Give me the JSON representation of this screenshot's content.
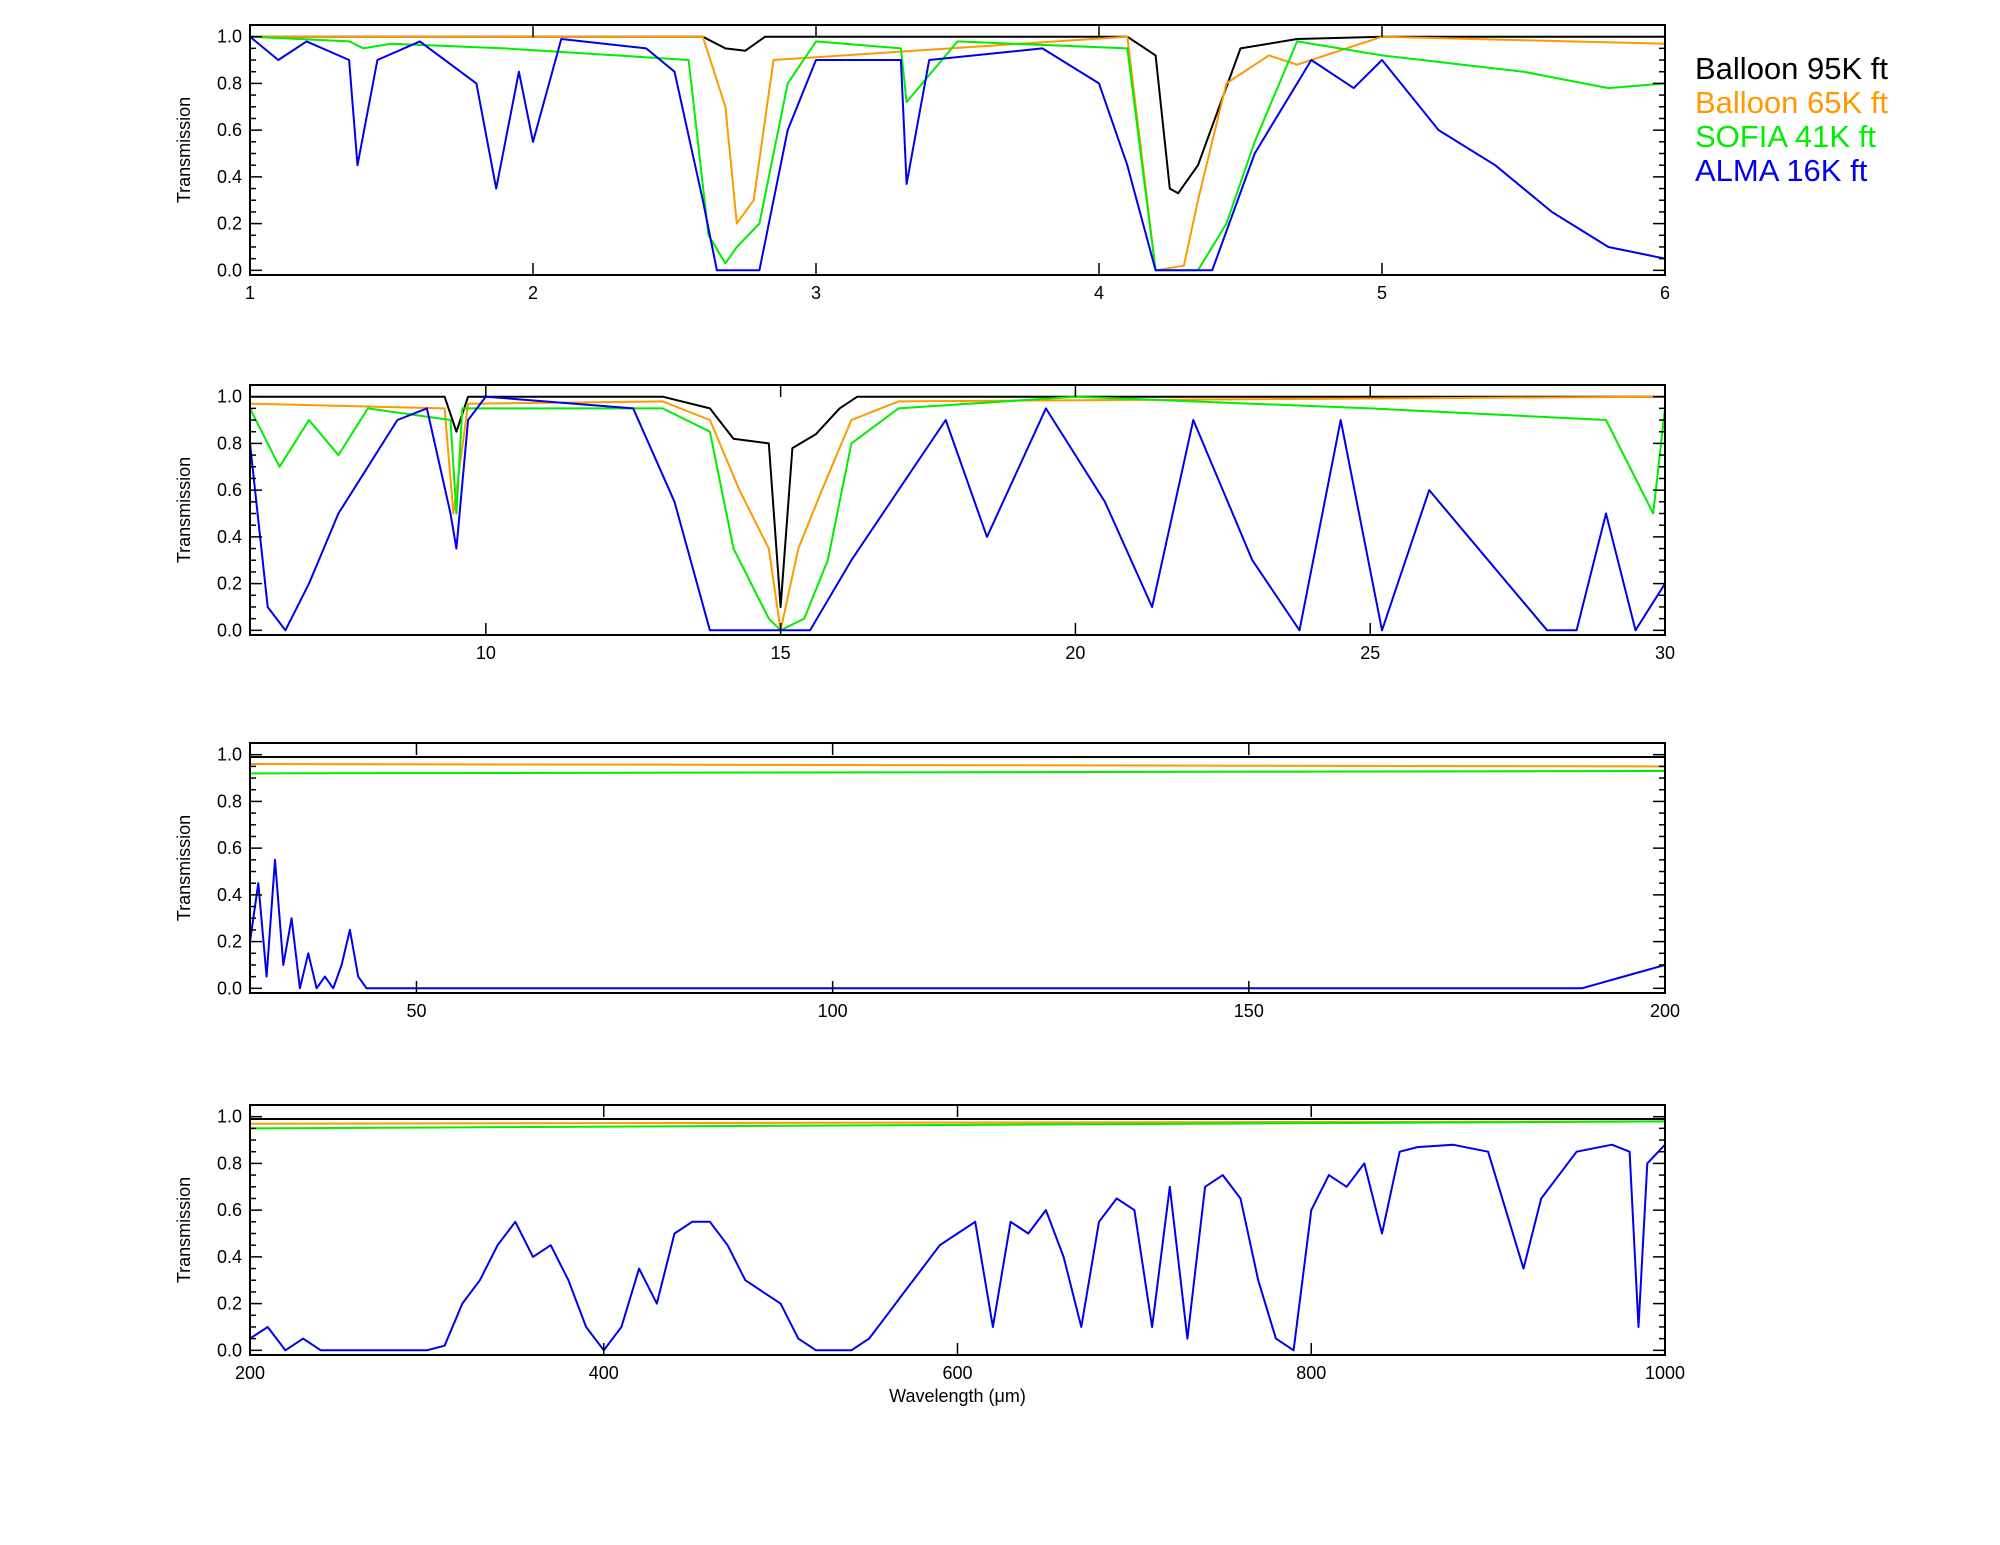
{
  "chart_data": [
    {
      "type": "line",
      "xlabel": "",
      "ylabel": "Transmission",
      "xlim": [
        1,
        6
      ],
      "ylim": [
        -0.02,
        1.05
      ],
      "xticks": [
        1,
        2,
        3,
        4,
        5,
        6
      ],
      "xtick_labels": [
        "1",
        "2",
        "3",
        "4",
        "5",
        "6"
      ],
      "yticks": [
        0.0,
        0.2,
        0.4,
        0.6,
        0.8,
        1.0
      ],
      "ytick_labels": [
        "0.0",
        "0.2",
        "0.4",
        "0.6",
        "0.8",
        "1.0"
      ],
      "series": [
        {
          "name": "Balloon 95K ft",
          "color": "#000000",
          "x": [
            1.0,
            2.6,
            2.68,
            2.75,
            2.82,
            4.1,
            4.2,
            4.25,
            4.28,
            4.35,
            4.5,
            4.7,
            5.0,
            6.0
          ],
          "y": [
            1.0,
            1.0,
            0.95,
            0.94,
            1.0,
            1.0,
            0.92,
            0.35,
            0.33,
            0.45,
            0.95,
            0.99,
            1.0,
            1.0
          ]
        },
        {
          "name": "Balloon 65K ft",
          "color": "#ff9900",
          "x": [
            1.0,
            2.6,
            2.68,
            2.72,
            2.78,
            2.85,
            4.1,
            4.2,
            4.3,
            4.35,
            4.45,
            4.6,
            4.7,
            5.0,
            6.0
          ],
          "y": [
            1.0,
            1.0,
            0.7,
            0.2,
            0.3,
            0.9,
            1.0,
            0.0,
            0.02,
            0.3,
            0.8,
            0.92,
            0.88,
            1.0,
            0.97
          ]
        },
        {
          "name": "SOFIA 41K ft",
          "color": "#00ee00",
          "x": [
            1.0,
            1.35,
            1.4,
            1.5,
            1.9,
            2.55,
            2.62,
            2.68,
            2.72,
            2.8,
            2.9,
            3.0,
            3.3,
            3.32,
            3.5,
            4.1,
            4.2,
            4.35,
            4.45,
            4.55,
            4.7,
            5.0,
            5.5,
            5.8,
            6.0
          ],
          "y": [
            1.0,
            0.98,
            0.95,
            0.97,
            0.95,
            0.9,
            0.15,
            0.03,
            0.1,
            0.2,
            0.8,
            0.98,
            0.95,
            0.72,
            0.98,
            0.95,
            0.0,
            0.0,
            0.2,
            0.55,
            0.98,
            0.92,
            0.85,
            0.78,
            0.8
          ]
        },
        {
          "name": "ALMA 16K ft",
          "color": "#0000ee",
          "x": [
            1.0,
            1.1,
            1.2,
            1.35,
            1.38,
            1.45,
            1.6,
            1.8,
            1.87,
            1.95,
            2.0,
            2.1,
            2.4,
            2.5,
            2.6,
            2.65,
            2.8,
            2.9,
            3.0,
            3.3,
            3.32,
            3.4,
            3.8,
            4.0,
            4.1,
            4.2,
            4.4,
            4.55,
            4.75,
            4.9,
            5.0,
            5.2,
            5.4,
            5.6,
            5.8,
            6.0
          ],
          "y": [
            1.0,
            0.9,
            0.98,
            0.9,
            0.45,
            0.9,
            0.98,
            0.8,
            0.35,
            0.85,
            0.55,
            0.99,
            0.95,
            0.85,
            0.3,
            0.0,
            0.0,
            0.6,
            0.9,
            0.9,
            0.37,
            0.9,
            0.95,
            0.8,
            0.45,
            0.0,
            0.0,
            0.5,
            0.9,
            0.78,
            0.9,
            0.6,
            0.45,
            0.25,
            0.1,
            0.05
          ]
        }
      ]
    },
    {
      "type": "line",
      "xlabel": "",
      "ylabel": "Transmission",
      "xlim": [
        6,
        30
      ],
      "ylim": [
        -0.02,
        1.05
      ],
      "xticks": [
        10,
        15,
        20,
        25,
        30
      ],
      "xtick_labels": [
        "10",
        "15",
        "20",
        "25",
        "30"
      ],
      "yticks": [
        0.0,
        0.2,
        0.4,
        0.6,
        0.8,
        1.0
      ],
      "ytick_labels": [
        "0.0",
        "0.2",
        "0.4",
        "0.6",
        "0.8",
        "1.0"
      ],
      "series": [
        {
          "name": "Balloon 95K ft",
          "color": "#000000",
          "x": [
            6.0,
            9.3,
            9.5,
            9.7,
            13.0,
            13.8,
            14.2,
            14.8,
            15.0,
            15.2,
            15.6,
            16.0,
            16.3,
            30.0
          ],
          "y": [
            1.0,
            1.0,
            0.85,
            1.0,
            1.0,
            0.95,
            0.82,
            0.8,
            0.1,
            0.78,
            0.84,
            0.95,
            1.0,
            1.0
          ]
        },
        {
          "name": "Balloon 65K ft",
          "color": "#ff9900",
          "x": [
            6.0,
            9.3,
            9.45,
            9.7,
            13.0,
            13.8,
            14.3,
            14.8,
            15.0,
            15.3,
            15.7,
            16.2,
            17.0,
            30.0
          ],
          "y": [
            0.97,
            0.95,
            0.5,
            0.97,
            0.98,
            0.9,
            0.6,
            0.35,
            0.0,
            0.35,
            0.6,
            0.9,
            0.98,
            1.0
          ]
        },
        {
          "name": "SOFIA 41K ft",
          "color": "#00ee00",
          "x": [
            6.0,
            6.5,
            7.0,
            7.5,
            8.0,
            9.4,
            9.5,
            9.6,
            13.0,
            13.8,
            14.2,
            14.8,
            15.0,
            15.4,
            15.8,
            16.2,
            17.0,
            20.0,
            25.0,
            29.0,
            29.8,
            30.0
          ],
          "y": [
            0.95,
            0.7,
            0.9,
            0.75,
            0.95,
            0.9,
            0.5,
            0.95,
            0.95,
            0.85,
            0.35,
            0.05,
            0.0,
            0.05,
            0.3,
            0.8,
            0.95,
            1.0,
            0.95,
            0.9,
            0.5,
            0.95
          ]
        },
        {
          "name": "ALMA 16K ft",
          "color": "#0000ee",
          "x": [
            6.0,
            6.3,
            6.6,
            7.0,
            7.5,
            8.0,
            8.5,
            9.0,
            9.4,
            9.5,
            9.7,
            10.0,
            12.5,
            13.2,
            13.8,
            14.5,
            15.5,
            16.2,
            17.0,
            17.8,
            18.5,
            19.5,
            20.5,
            21.3,
            22.0,
            23.0,
            23.8,
            24.5,
            25.2,
            26.0,
            27.0,
            28.0,
            28.5,
            29.0,
            29.5,
            30.0
          ],
          "y": [
            0.8,
            0.1,
            0.0,
            0.2,
            0.5,
            0.7,
            0.9,
            0.95,
            0.5,
            0.35,
            0.9,
            1.0,
            0.95,
            0.55,
            0.0,
            0.0,
            0.0,
            0.3,
            0.6,
            0.9,
            0.4,
            0.95,
            0.55,
            0.1,
            0.9,
            0.3,
            0.0,
            0.9,
            0.0,
            0.6,
            0.3,
            0.0,
            0.0,
            0.5,
            0.0,
            0.2
          ]
        }
      ]
    },
    {
      "type": "line",
      "xlabel": "",
      "ylabel": "Transmission",
      "xlim": [
        30,
        200
      ],
      "ylim": [
        -0.02,
        1.05
      ],
      "xticks": [
        50,
        100,
        150,
        200
      ],
      "xtick_labels": [
        "50",
        "100",
        "150",
        "200"
      ],
      "yticks": [
        0.0,
        0.2,
        0.4,
        0.6,
        0.8,
        1.0
      ],
      "ytick_labels": [
        "0.0",
        "0.2",
        "0.4",
        "0.6",
        "0.8",
        "1.0"
      ],
      "series": [
        {
          "name": "Balloon 95K ft",
          "color": "#000000",
          "x": [
            30,
            200
          ],
          "y": [
            0.99,
            0.99
          ]
        },
        {
          "name": "Balloon 65K ft",
          "color": "#ff9900",
          "x": [
            30,
            200
          ],
          "y": [
            0.96,
            0.95
          ]
        },
        {
          "name": "SOFIA 41K ft",
          "color": "#00ee00",
          "x": [
            30,
            200
          ],
          "y": [
            0.92,
            0.93
          ]
        },
        {
          "name": "ALMA 16K ft",
          "color": "#0000ee",
          "x": [
            30,
            31,
            32,
            33,
            34,
            35,
            36,
            37,
            38,
            39,
            40,
            41,
            42,
            43,
            44,
            46,
            50,
            60,
            100,
            150,
            190,
            195,
            198,
            200
          ],
          "y": [
            0.2,
            0.45,
            0.05,
            0.55,
            0.1,
            0.3,
            0.0,
            0.15,
            0.0,
            0.05,
            0.0,
            0.1,
            0.25,
            0.05,
            0.0,
            0.0,
            0.0,
            0.0,
            0.0,
            0.0,
            0.0,
            0.05,
            0.08,
            0.1
          ]
        }
      ]
    },
    {
      "type": "line",
      "xlabel": "Wavelength (μm)",
      "ylabel": "Transmission",
      "xlim": [
        200,
        1000
      ],
      "ylim": [
        -0.02,
        1.05
      ],
      "xticks": [
        200,
        400,
        600,
        800,
        1000
      ],
      "xtick_labels": [
        "200",
        "400",
        "600",
        "800",
        "1000"
      ],
      "yticks": [
        0.0,
        0.2,
        0.4,
        0.6,
        0.8,
        1.0
      ],
      "ytick_labels": [
        "0.0",
        "0.2",
        "0.4",
        "0.6",
        "0.8",
        "1.0"
      ],
      "series": [
        {
          "name": "Balloon 95K ft",
          "color": "#000000",
          "x": [
            200,
            1000
          ],
          "y": [
            0.99,
            0.99
          ]
        },
        {
          "name": "Balloon 65K ft",
          "color": "#ff9900",
          "x": [
            200,
            1000
          ],
          "y": [
            0.97,
            0.98
          ]
        },
        {
          "name": "SOFIA 41K ft",
          "color": "#00ee00",
          "x": [
            200,
            1000
          ],
          "y": [
            0.95,
            0.98
          ]
        },
        {
          "name": "ALMA 16K ft",
          "color": "#0000ee",
          "x": [
            200,
            210,
            220,
            230,
            240,
            250,
            300,
            310,
            320,
            330,
            340,
            350,
            360,
            370,
            380,
            390,
            400,
            410,
            420,
            430,
            440,
            450,
            460,
            470,
            480,
            490,
            500,
            510,
            520,
            530,
            540,
            550,
            560,
            570,
            580,
            590,
            600,
            610,
            620,
            630,
            640,
            650,
            660,
            670,
            680,
            690,
            700,
            710,
            720,
            730,
            740,
            750,
            760,
            770,
            780,
            790,
            800,
            810,
            820,
            830,
            840,
            850,
            860,
            880,
            900,
            910,
            920,
            930,
            950,
            970,
            980,
            985,
            990,
            1000
          ],
          "y": [
            0.05,
            0.1,
            0.0,
            0.05,
            0.0,
            0.0,
            0.0,
            0.02,
            0.2,
            0.3,
            0.45,
            0.55,
            0.4,
            0.45,
            0.3,
            0.1,
            0.0,
            0.1,
            0.35,
            0.2,
            0.5,
            0.55,
            0.55,
            0.45,
            0.3,
            0.25,
            0.2,
            0.05,
            0.0,
            0.0,
            0.0,
            0.05,
            0.15,
            0.25,
            0.35,
            0.45,
            0.5,
            0.55,
            0.1,
            0.55,
            0.5,
            0.6,
            0.4,
            0.1,
            0.55,
            0.65,
            0.6,
            0.1,
            0.7,
            0.05,
            0.7,
            0.75,
            0.65,
            0.3,
            0.05,
            0.0,
            0.6,
            0.75,
            0.7,
            0.8,
            0.5,
            0.85,
            0.87,
            0.88,
            0.85,
            0.6,
            0.35,
            0.65,
            0.85,
            0.88,
            0.85,
            0.1,
            0.8,
            0.88
          ]
        }
      ]
    }
  ],
  "legend": {
    "placement": "top-right",
    "entries": [
      {
        "label": "Balloon 95K ft",
        "color": "#000000"
      },
      {
        "label": "Balloon 65K ft",
        "color": "#ff9900"
      },
      {
        "label": "SOFIA 41K ft",
        "color": "#00ee00"
      },
      {
        "label": "ALMA 16K ft",
        "color": "#0000ee"
      }
    ]
  }
}
